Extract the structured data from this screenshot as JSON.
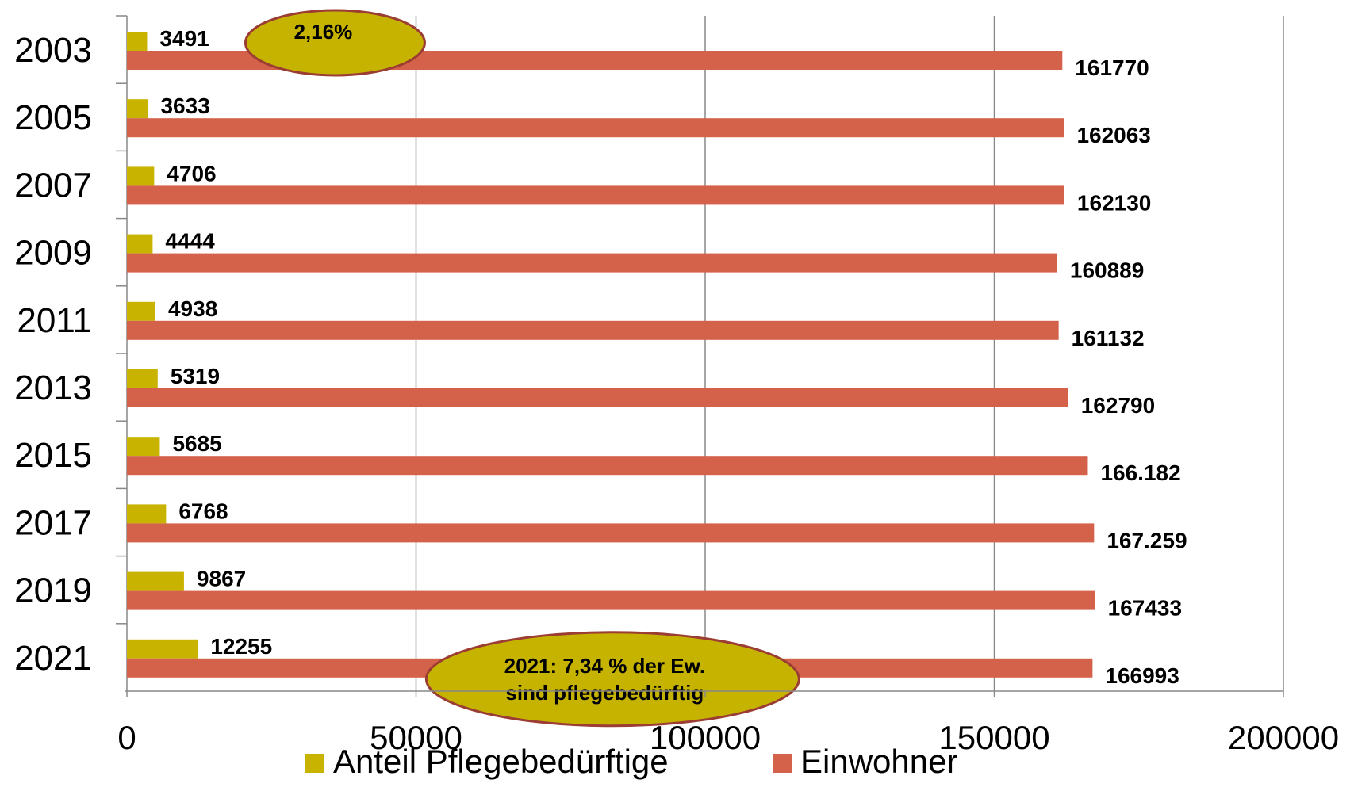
{
  "chart_data": {
    "type": "bar",
    "orientation": "horizontal",
    "categories": [
      "2003",
      "2005",
      "2007",
      "2009",
      "2011",
      "2013",
      "2015",
      "2017",
      "2019",
      "2021"
    ],
    "series": [
      {
        "name": "Anteil Pflegebedürftige",
        "color": "#c8b400",
        "values": [
          3491,
          3633,
          4706,
          4444,
          4938,
          5319,
          5685,
          6768,
          9867,
          12255
        ],
        "labels": [
          "3491",
          "3633",
          "4706",
          "4444",
          "4938",
          "5319",
          "5685",
          "6768",
          "9867",
          "12255"
        ]
      },
      {
        "name": "Einwohner",
        "color": "#d4624a",
        "values": [
          161770,
          162063,
          162130,
          160889,
          161132,
          162790,
          166182,
          167259,
          167433,
          166993
        ],
        "labels": [
          "161770",
          "162063",
          "162130",
          "160889",
          "161132",
          "162790",
          "166.182",
          "167.259",
          "167433",
          "166993"
        ]
      }
    ],
    "x_ticks": [
      "0",
      "50000",
      "100000",
      "150000",
      "200000"
    ],
    "xlim": [
      0,
      200000
    ],
    "grid": "vertical",
    "legend_position": "bottom",
    "annotations": [
      {
        "lines": [
          "2,16%"
        ],
        "category": "2003",
        "x_value": 36000
      },
      {
        "lines": [
          "2021: 7,34 % der Ew.",
          "sind pflegebedürftig"
        ],
        "category": "2021",
        "x_value": 84000
      }
    ]
  }
}
